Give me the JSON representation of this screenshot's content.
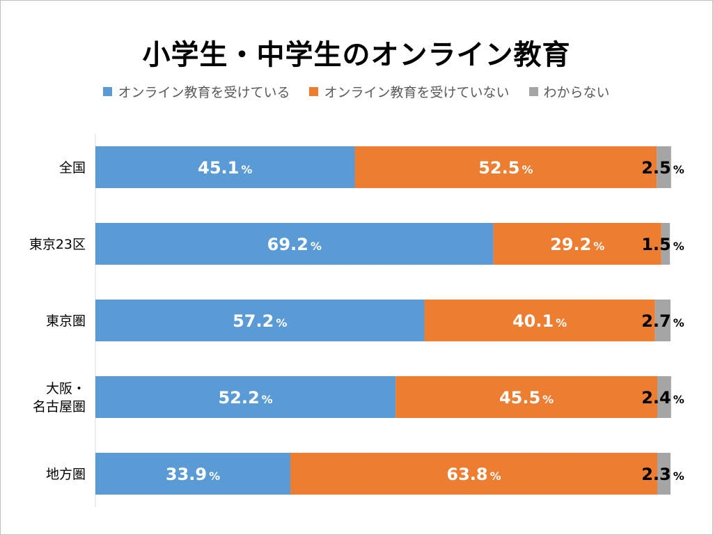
{
  "chart_data": {
    "type": "bar",
    "orientation": "horizontal",
    "stacked": true,
    "title": "小学生・中学生のオンライン教育",
    "categories": [
      "全国",
      "東京23区",
      "東京圏",
      "大阪・\n名古屋圏",
      "地方圏"
    ],
    "series": [
      {
        "name": "オンライン教育を受けている",
        "color": "#5b9bd5",
        "values": [
          45.1,
          69.2,
          57.2,
          52.2,
          33.9
        ]
      },
      {
        "name": "オンライン教育を受けていない",
        "color": "#ed7d31",
        "values": [
          52.5,
          29.2,
          40.1,
          45.5,
          63.8
        ]
      },
      {
        "name": "わからない",
        "color": "#a5a5a5",
        "values": [
          2.5,
          1.5,
          2.7,
          2.4,
          2.3
        ]
      }
    ],
    "data_labels": [
      [
        "45.1",
        "69.2",
        "57.2",
        "52.2",
        "33.9"
      ],
      [
        "52.5",
        "29.2",
        "40.1",
        "45.5",
        "63.8"
      ],
      [
        "2.5",
        "1.5",
        "2.7",
        "2.4",
        "2.3"
      ]
    ],
    "unit": "%",
    "xlim": [
      0,
      100
    ],
    "legend_position": "top",
    "grid": false
  }
}
